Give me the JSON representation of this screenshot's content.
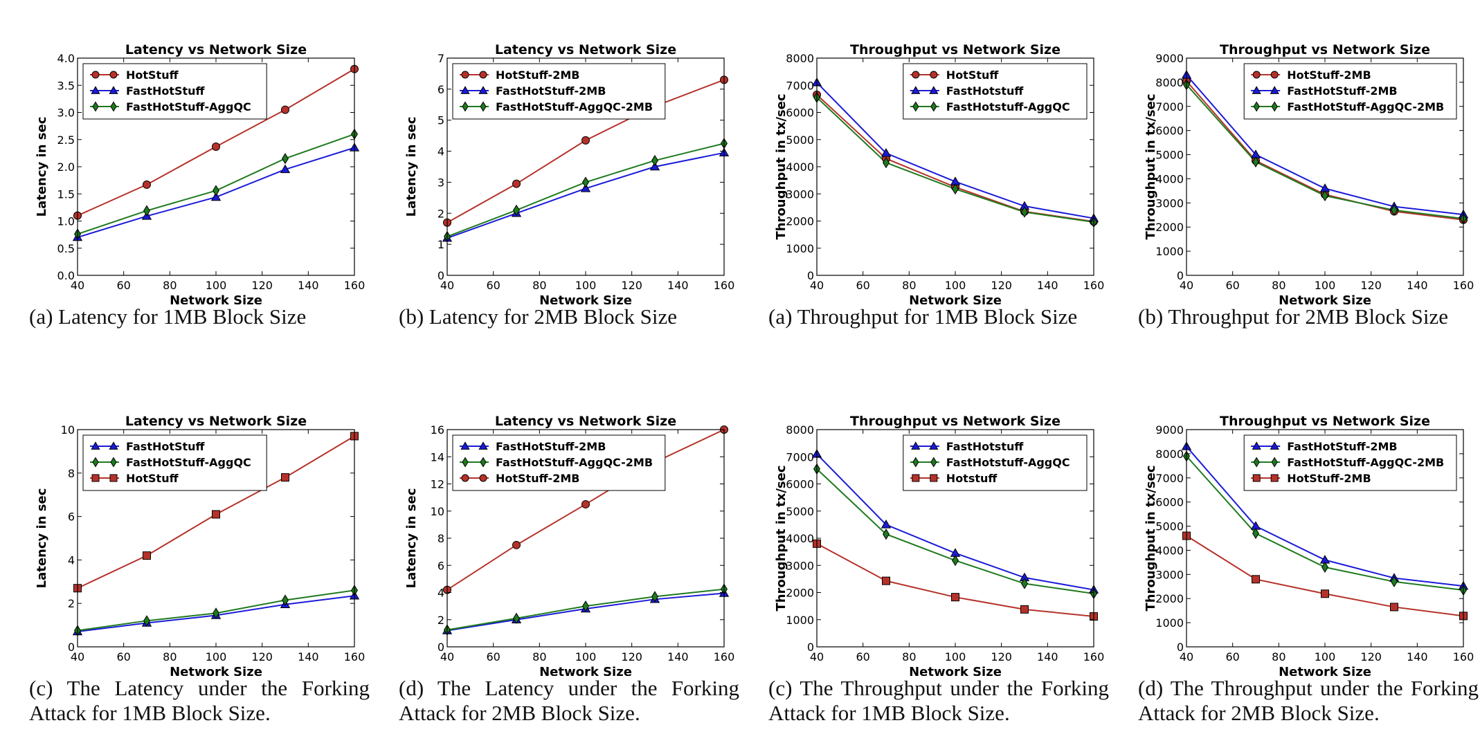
{
  "colors": {
    "hotstuff": "#b5322a",
    "fast": "#1a1ad8",
    "agg": "#1e7a1e"
  },
  "panels": [
    {
      "caption": "(a) Latency for 1MB Block Size",
      "chart_data": {
        "type": "line",
        "title": "Latency vs Network Size",
        "xlabel": "Network Size",
        "ylabel": "Latency in sec",
        "xlim": [
          40,
          160
        ],
        "ylim": [
          0,
          4.0
        ],
        "xticks": [
          "40",
          "60",
          "80",
          "100",
          "120",
          "140",
          "160"
        ],
        "yticks": [
          "0.0",
          "0.5",
          "1.0",
          "1.5",
          "2.0",
          "2.5",
          "3.0",
          "3.5",
          "4.0"
        ],
        "legend": "top-left",
        "x": [
          40,
          70,
          100,
          130,
          160
        ],
        "series": [
          {
            "name": "HotStuff",
            "marker": "circle",
            "color": "#b5322a",
            "values": [
              1.1,
              1.67,
              2.37,
              3.05,
              3.8
            ]
          },
          {
            "name": "FastHotStuff",
            "marker": "triangle",
            "color": "#1a1ad8",
            "values": [
              0.7,
              1.09,
              1.44,
              1.95,
              2.35
            ]
          },
          {
            "name": "FastHotStuff-AggQC",
            "marker": "diamond",
            "color": "#1e7a1e",
            "values": [
              0.76,
              1.19,
              1.56,
              2.15,
              2.6
            ]
          }
        ]
      }
    },
    {
      "caption": "(b) Latency for 2MB Block Size",
      "chart_data": {
        "type": "line",
        "title": "Latency vs Network Size",
        "xlabel": "Network Size",
        "ylabel": "Latency in sec",
        "xlim": [
          40,
          160
        ],
        "ylim": [
          0,
          7
        ],
        "xticks": [
          "40",
          "60",
          "80",
          "100",
          "120",
          "140",
          "160"
        ],
        "yticks": [
          "0",
          "1",
          "2",
          "3",
          "4",
          "5",
          "6",
          "7"
        ],
        "legend": "top-left",
        "x": [
          40,
          70,
          100,
          130,
          160
        ],
        "series": [
          {
            "name": "HotStuff-2MB",
            "marker": "circle",
            "color": "#b5322a",
            "values": [
              1.7,
              2.95,
              4.35,
              5.45,
              6.3
            ]
          },
          {
            "name": "FastHotStuff-2MB",
            "marker": "triangle",
            "color": "#1a1ad8",
            "values": [
              1.2,
              2.0,
              2.8,
              3.5,
              3.95
            ]
          },
          {
            "name": "FastHotStuff-AggQC-2MB",
            "marker": "diamond",
            "color": "#1e7a1e",
            "values": [
              1.25,
              2.1,
              3.0,
              3.7,
              4.25
            ]
          }
        ]
      }
    },
    {
      "caption": "(a) Throughput for 1MB Block Size",
      "chart_data": {
        "type": "line",
        "title": "Throughput vs Network Size",
        "xlabel": "Network Size",
        "ylabel": "Throughput in tx/sec",
        "xlim": [
          40,
          160
        ],
        "ylim": [
          0,
          8000
        ],
        "xticks": [
          "40",
          "60",
          "80",
          "100",
          "120",
          "140",
          "160"
        ],
        "yticks": [
          "0",
          "1000",
          "2000",
          "3000",
          "4000",
          "5000",
          "6000",
          "7000",
          "8000"
        ],
        "legend": "top-right",
        "x": [
          40,
          70,
          100,
          130,
          160
        ],
        "series": [
          {
            "name": "HotStuff",
            "marker": "circle",
            "color": "#b5322a",
            "values": [
              6650,
              4300,
              3250,
              2350,
              1980
            ]
          },
          {
            "name": "FastHotstuff",
            "marker": "triangle",
            "color": "#1a1ad8",
            "values": [
              7100,
              4500,
              3450,
              2550,
              2100
            ]
          },
          {
            "name": "FastHotstuff-AggQC",
            "marker": "diamond",
            "color": "#1e7a1e",
            "values": [
              6550,
              4150,
              3180,
              2330,
              1960
            ]
          }
        ]
      }
    },
    {
      "caption": "(b) Throughput for 2MB Block Size",
      "chart_data": {
        "type": "line",
        "title": "Throughput vs Network Size",
        "xlabel": "Network Size",
        "ylabel": "Throughput in tx/sec",
        "xlim": [
          40,
          160
        ],
        "ylim": [
          0,
          9000
        ],
        "xticks": [
          "40",
          "60",
          "80",
          "100",
          "120",
          "140",
          "160"
        ],
        "yticks": [
          "0",
          "1000",
          "2000",
          "3000",
          "4000",
          "5000",
          "6000",
          "7000",
          "8000",
          "9000"
        ],
        "legend": "top-right",
        "x": [
          40,
          70,
          100,
          130,
          160
        ],
        "series": [
          {
            "name": "HotStuff-2MB",
            "marker": "circle",
            "color": "#b5322a",
            "values": [
              8050,
              4750,
              3350,
              2650,
              2300
            ]
          },
          {
            "name": "FastHotStuff-2MB",
            "marker": "triangle",
            "color": "#1a1ad8",
            "values": [
              8300,
              5000,
              3600,
              2850,
              2520
            ]
          },
          {
            "name": "FastHotStuff-AggQC-2MB",
            "marker": "diamond",
            "color": "#1e7a1e",
            "values": [
              7900,
              4700,
              3300,
              2700,
              2350
            ]
          }
        ]
      }
    },
    {
      "caption": "(c) The Latency under the Forking Attack for 1MB Block Size.",
      "chart_data": {
        "type": "line",
        "title": "Latency vs Network Size",
        "xlabel": "Network Size",
        "ylabel": "Latency in sec",
        "xlim": [
          40,
          160
        ],
        "ylim": [
          0,
          10
        ],
        "xticks": [
          "40",
          "60",
          "80",
          "100",
          "120",
          "140",
          "160"
        ],
        "yticks": [
          "0",
          "2",
          "4",
          "6",
          "8",
          "10"
        ],
        "legend": "top-left",
        "x": [
          40,
          70,
          100,
          130,
          160
        ],
        "series": [
          {
            "name": "FastHotStuff",
            "marker": "triangle",
            "color": "#1a1ad8",
            "values": [
              0.7,
              1.1,
              1.45,
              1.95,
              2.35
            ]
          },
          {
            "name": "FastHotStuff-AggQC",
            "marker": "diamond",
            "color": "#1e7a1e",
            "values": [
              0.75,
              1.2,
              1.55,
              2.15,
              2.6
            ]
          },
          {
            "name": "HotStuff",
            "marker": "square",
            "color": "#b5322a",
            "values": [
              2.7,
              4.2,
              6.1,
              7.8,
              9.7
            ]
          }
        ]
      }
    },
    {
      "caption": "(d) The Latency under the Forking Attack for 2MB Block Size.",
      "chart_data": {
        "type": "line",
        "title": "Latency vs Network Size",
        "xlabel": "Network Size",
        "ylabel": "Latency in sec",
        "xlim": [
          40,
          160
        ],
        "ylim": [
          0,
          16
        ],
        "xticks": [
          "40",
          "60",
          "80",
          "100",
          "120",
          "140",
          "160"
        ],
        "yticks": [
          "0",
          "2",
          "4",
          "6",
          "8",
          "10",
          "12",
          "14",
          "16"
        ],
        "legend": "top-left",
        "x": [
          40,
          70,
          100,
          130,
          160
        ],
        "series": [
          {
            "name": "FastHotStuff-2MB",
            "marker": "triangle",
            "color": "#1a1ad8",
            "values": [
              1.2,
              2.0,
              2.8,
              3.5,
              3.95
            ]
          },
          {
            "name": "FastHotStuff-AggQC-2MB",
            "marker": "diamond",
            "color": "#1e7a1e",
            "values": [
              1.25,
              2.1,
              3.0,
              3.7,
              4.25
            ]
          },
          {
            "name": "HotStuff-2MB",
            "marker": "circle",
            "color": "#b5322a",
            "values": [
              4.2,
              7.5,
              10.5,
              13.6,
              16.0
            ]
          }
        ]
      }
    },
    {
      "caption": "(c) The Throughput under the Forking Attack for 1MB Block Size.",
      "chart_data": {
        "type": "line",
        "title": "Throughput vs Network Size",
        "xlabel": "Network Size",
        "ylabel": "Throughput in tx/sec",
        "xlim": [
          40,
          160
        ],
        "ylim": [
          0,
          8000
        ],
        "xticks": [
          "40",
          "60",
          "80",
          "100",
          "120",
          "140",
          "160"
        ],
        "yticks": [
          "0",
          "1000",
          "2000",
          "3000",
          "4000",
          "5000",
          "6000",
          "7000",
          "8000"
        ],
        "legend": "top-right",
        "x": [
          40,
          70,
          100,
          130,
          160
        ],
        "series": [
          {
            "name": "FastHotstuff",
            "marker": "triangle",
            "color": "#1a1ad8",
            "values": [
              7100,
              4500,
              3450,
              2550,
              2100
            ]
          },
          {
            "name": "FastHotstuff-AggQC",
            "marker": "diamond",
            "color": "#1e7a1e",
            "values": [
              6550,
              4150,
              3180,
              2330,
              1960
            ]
          },
          {
            "name": "Hotstuff",
            "marker": "square",
            "color": "#b5322a",
            "values": [
              3800,
              2430,
              1830,
              1380,
              1120
            ]
          }
        ]
      }
    },
    {
      "caption": "(d) The Throughput under the Forking Attack for 2MB Block Size.",
      "chart_data": {
        "type": "line",
        "title": "Throughput vs Network Size",
        "xlabel": "Network Size",
        "ylabel": "Throughput in tx/sec",
        "xlim": [
          40,
          160
        ],
        "ylim": [
          0,
          9000
        ],
        "xticks": [
          "40",
          "60",
          "80",
          "100",
          "120",
          "140",
          "160"
        ],
        "yticks": [
          "0",
          "1000",
          "2000",
          "3000",
          "4000",
          "5000",
          "6000",
          "7000",
          "8000",
          "9000"
        ],
        "legend": "top-right",
        "x": [
          40,
          70,
          100,
          130,
          160
        ],
        "series": [
          {
            "name": "FastHotStuff-2MB",
            "marker": "triangle",
            "color": "#1a1ad8",
            "values": [
              8300,
              5000,
              3600,
              2850,
              2520
            ]
          },
          {
            "name": "FastHotStuff-AggQC-2MB",
            "marker": "diamond",
            "color": "#1e7a1e",
            "values": [
              7900,
              4700,
              3300,
              2700,
              2350
            ]
          },
          {
            "name": "HotStuff-2MB",
            "marker": "square",
            "color": "#b5322a",
            "values": [
              4600,
              2800,
              2200,
              1650,
              1280
            ]
          }
        ]
      }
    }
  ]
}
